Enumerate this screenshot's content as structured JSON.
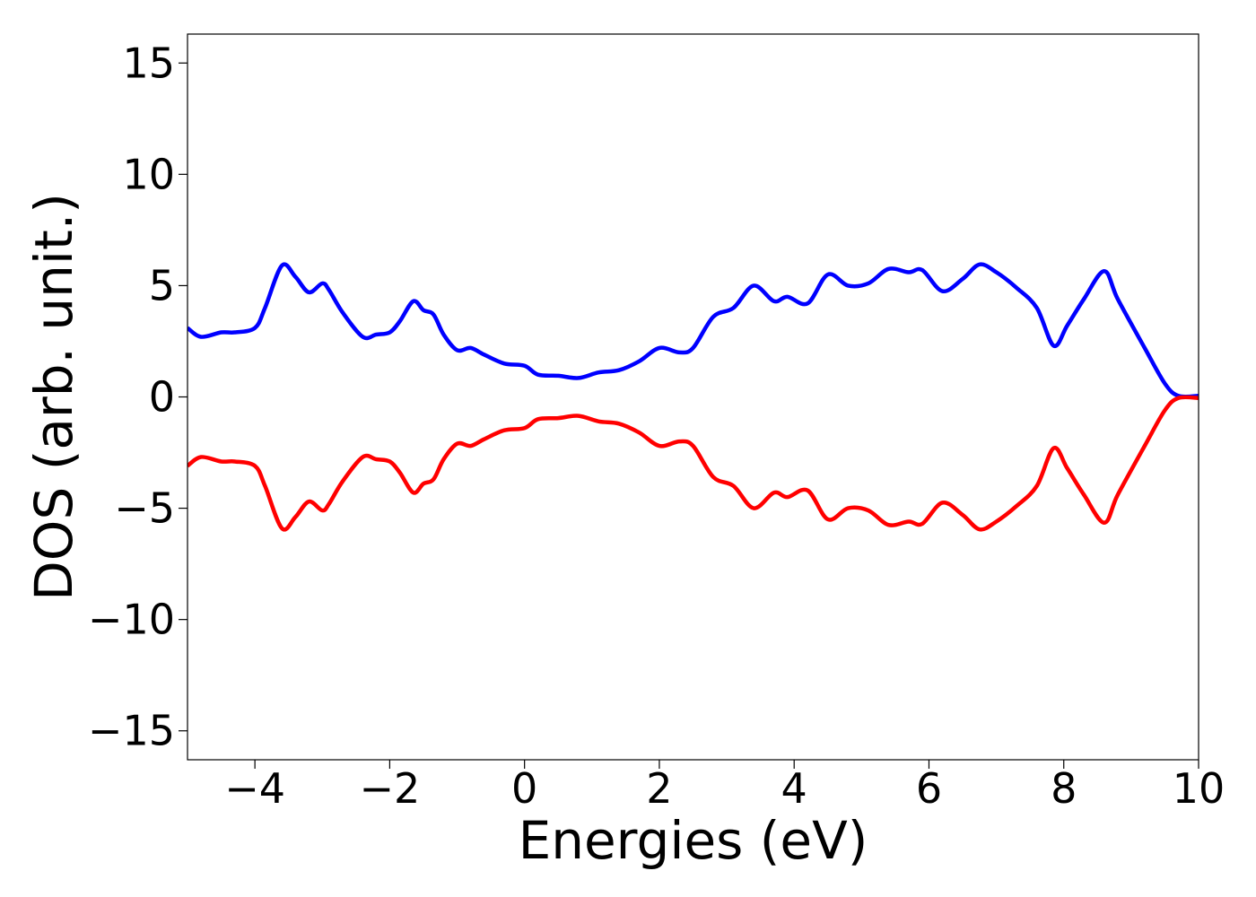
{
  "chart_data": {
    "type": "line",
    "xlabel": "Energies (eV)",
    "ylabel": "DOS (arb. unit.)",
    "xlim": [
      -5,
      10
    ],
    "ylim": [
      -16.3,
      16.3
    ],
    "xticks": [
      -4,
      -2,
      0,
      2,
      4,
      6,
      8,
      10
    ],
    "xtick_labels": [
      "−4",
      "−2",
      "0",
      "2",
      "4",
      "6",
      "8",
      "10"
    ],
    "yticks": [
      -15,
      -10,
      -5,
      0,
      5,
      10,
      15
    ],
    "ytick_labels": [
      "−15",
      "−10",
      "−5",
      "0",
      "5",
      "10",
      "15"
    ],
    "grid": false,
    "series": [
      {
        "color": "#0000ff",
        "x": [
          -5.0,
          -4.8,
          -4.5,
          -4.3,
          -4.0,
          -3.85,
          -3.6,
          -3.4,
          -3.2,
          -3.0,
          -2.9,
          -2.7,
          -2.4,
          -2.2,
          -2.0,
          -1.85,
          -1.65,
          -1.5,
          -1.35,
          -1.2,
          -1.0,
          -0.8,
          -0.6,
          -0.3,
          0.0,
          0.2,
          0.5,
          0.8,
          1.1,
          1.4,
          1.7,
          2.0,
          2.3,
          2.5,
          2.8,
          3.1,
          3.4,
          3.7,
          3.9,
          4.2,
          4.5,
          4.8,
          5.1,
          5.4,
          5.7,
          5.9,
          6.2,
          6.5,
          6.75,
          7.0,
          7.3,
          7.6,
          7.85,
          8.05,
          8.3,
          8.6,
          8.8,
          9.2,
          9.5,
          9.7,
          10.0
        ],
        "values": [
          3.1,
          2.7,
          2.9,
          2.9,
          3.1,
          4.0,
          5.9,
          5.4,
          4.7,
          5.1,
          4.8,
          3.8,
          2.7,
          2.8,
          2.9,
          3.4,
          4.3,
          3.9,
          3.7,
          2.8,
          2.1,
          2.2,
          1.9,
          1.5,
          1.4,
          1.0,
          0.95,
          0.85,
          1.1,
          1.2,
          1.6,
          2.2,
          2.0,
          2.2,
          3.6,
          4.0,
          5.0,
          4.3,
          4.5,
          4.2,
          5.5,
          5.0,
          5.1,
          5.75,
          5.6,
          5.7,
          4.75,
          5.3,
          5.95,
          5.6,
          4.9,
          4.0,
          2.3,
          3.2,
          4.4,
          5.65,
          4.4,
          2.2,
          0.6,
          0.05,
          0.05
        ]
      },
      {
        "color": "#ff0000",
        "x": [
          -5.0,
          -4.8,
          -4.5,
          -4.3,
          -4.0,
          -3.85,
          -3.6,
          -3.4,
          -3.2,
          -3.0,
          -2.9,
          -2.7,
          -2.4,
          -2.2,
          -2.0,
          -1.85,
          -1.65,
          -1.5,
          -1.35,
          -1.2,
          -1.0,
          -0.8,
          -0.6,
          -0.3,
          0.0,
          0.2,
          0.5,
          0.8,
          1.1,
          1.4,
          1.7,
          2.0,
          2.3,
          2.5,
          2.8,
          3.1,
          3.4,
          3.7,
          3.9,
          4.2,
          4.5,
          4.8,
          5.1,
          5.4,
          5.7,
          5.9,
          6.2,
          6.5,
          6.75,
          7.0,
          7.3,
          7.6,
          7.85,
          8.05,
          8.3,
          8.6,
          8.8,
          9.2,
          9.5,
          9.7,
          10.0
        ],
        "values": [
          -3.1,
          -2.7,
          -2.9,
          -2.9,
          -3.1,
          -4.0,
          -5.9,
          -5.4,
          -4.7,
          -5.1,
          -4.8,
          -3.8,
          -2.7,
          -2.8,
          -2.9,
          -3.4,
          -4.3,
          -3.9,
          -3.7,
          -2.8,
          -2.1,
          -2.2,
          -1.9,
          -1.5,
          -1.4,
          -1.0,
          -0.95,
          -0.85,
          -1.1,
          -1.2,
          -1.6,
          -2.2,
          -2.0,
          -2.2,
          -3.6,
          -4.0,
          -5.0,
          -4.3,
          -4.5,
          -4.2,
          -5.5,
          -5.0,
          -5.1,
          -5.75,
          -5.6,
          -5.7,
          -4.75,
          -5.3,
          -5.95,
          -5.6,
          -4.9,
          -4.0,
          -2.3,
          -3.2,
          -4.4,
          -5.65,
          -4.4,
          -2.2,
          -0.6,
          -0.05,
          -0.05
        ]
      }
    ]
  }
}
